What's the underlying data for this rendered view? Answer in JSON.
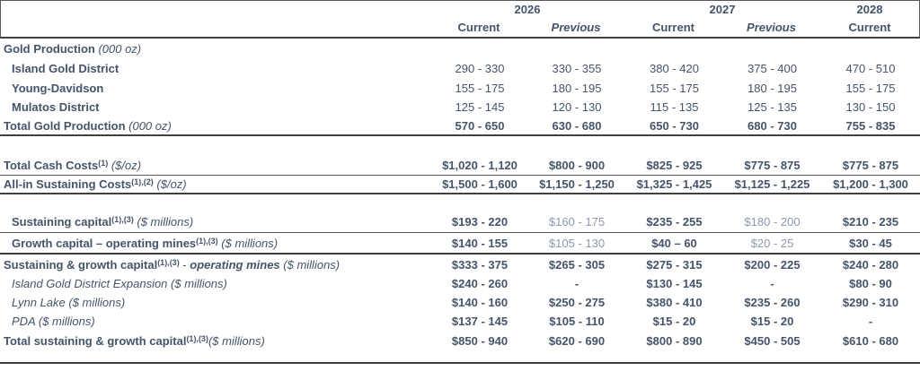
{
  "colors": {
    "background": "#FFFFFF",
    "text": "#44546A",
    "value_muted": "#8C9AAB",
    "rule_thin": "#595959",
    "rule_thick": "#404040"
  },
  "header": {
    "years": [
      {
        "label": "2026",
        "cols": 2
      },
      {
        "label": "2027",
        "cols": 2
      },
      {
        "label": "2028",
        "cols": 1
      }
    ],
    "subheaders": [
      {
        "label": "Current",
        "italic": false
      },
      {
        "label": "Previous",
        "italic": true
      },
      {
        "label": "Current",
        "italic": false
      },
      {
        "label": "Previous",
        "italic": true
      },
      {
        "label": "Current",
        "italic": false
      }
    ]
  },
  "table": {
    "rows": [
      {
        "name": "gold-production-header",
        "indent": false,
        "rule": "none",
        "label_parts": [
          {
            "t": "Gold Production",
            "s": "b"
          },
          {
            "t": " (000 oz)",
            "s": "i"
          }
        ],
        "values": []
      },
      {
        "name": "island-gold-district",
        "indent": true,
        "rule": "none",
        "label_parts": [
          {
            "t": "Island Gold District",
            "s": "b"
          }
        ],
        "values": [
          {
            "t": "290 - 330",
            "s": "reg"
          },
          {
            "t": "330 - 355",
            "s": "reg"
          },
          {
            "t": "380 - 420",
            "s": "reg"
          },
          {
            "t": "375 - 400",
            "s": "reg"
          },
          {
            "t": "470 - 510",
            "s": "reg"
          }
        ]
      },
      {
        "name": "young-davidson",
        "indent": true,
        "rule": "none",
        "label_parts": [
          {
            "t": "Young-Davidson",
            "s": "b"
          }
        ],
        "values": [
          {
            "t": "155 - 175",
            "s": "reg"
          },
          {
            "t": "180 - 195",
            "s": "reg"
          },
          {
            "t": "155 - 175",
            "s": "reg"
          },
          {
            "t": "180 - 195",
            "s": "reg"
          },
          {
            "t": "155 - 175",
            "s": "reg"
          }
        ]
      },
      {
        "name": "mulatos-district",
        "indent": true,
        "rule": "none",
        "label_parts": [
          {
            "t": "Mulatos District",
            "s": "b"
          }
        ],
        "values": [
          {
            "t": "125 - 145",
            "s": "reg"
          },
          {
            "t": "120 - 130",
            "s": "reg"
          },
          {
            "t": "115 - 135",
            "s": "reg"
          },
          {
            "t": "125 - 135",
            "s": "reg"
          },
          {
            "t": "130 - 150",
            "s": "reg"
          }
        ]
      },
      {
        "name": "total-gold-production",
        "indent": false,
        "rule": "thick",
        "label_parts": [
          {
            "t": "Total Gold Production",
            "s": "b"
          },
          {
            "t": " (000 oz)",
            "s": "i"
          }
        ],
        "values": [
          {
            "t": "570 - 650",
            "s": "bold"
          },
          {
            "t": "630 - 680",
            "s": "bold"
          },
          {
            "t": "650 - 730",
            "s": "bold"
          },
          {
            "t": "680 - 730",
            "s": "bold"
          },
          {
            "t": "755 - 835",
            "s": "bold"
          }
        ]
      },
      {
        "name": "spacer-1",
        "spacer": true,
        "rule": "none",
        "label_parts": [],
        "values": []
      },
      {
        "name": "total-cash-costs",
        "indent": false,
        "rule": "thin",
        "label_parts": [
          {
            "t": "Total Cash Costs",
            "s": "b"
          },
          {
            "t": "(1)",
            "s": "sup"
          },
          {
            "t": " ($/oz)",
            "s": "i"
          }
        ],
        "values": [
          {
            "t": "$1,020 - 1,120",
            "s": "bold"
          },
          {
            "t": "$800 - 900",
            "s": "bold"
          },
          {
            "t": "$825 - 925",
            "s": "bold"
          },
          {
            "t": "$775 - 875",
            "s": "bold"
          },
          {
            "t": "$775 - 875",
            "s": "bold"
          }
        ]
      },
      {
        "name": "all-in-sustaining-costs",
        "indent": false,
        "rule": "thick",
        "label_parts": [
          {
            "t": "All-in Sustaining Costs",
            "s": "b"
          },
          {
            "t": "(1),(2)",
            "s": "sup"
          },
          {
            "t": " ($/oz)",
            "s": "i"
          }
        ],
        "values": [
          {
            "t": "$1,500 - 1,600",
            "s": "bold"
          },
          {
            "t": "$1,150 - 1,250",
            "s": "bold"
          },
          {
            "t": "$1,325 - 1,425",
            "s": "bold"
          },
          {
            "t": "$1,125 - 1,225",
            "s": "bold"
          },
          {
            "t": "$1,200 - 1,300",
            "s": "bold"
          }
        ]
      },
      {
        "name": "spacer-2",
        "spacer": true,
        "rule": "none",
        "label_parts": [],
        "values": []
      },
      {
        "name": "sustaining-capital",
        "indent": true,
        "rule": "thin",
        "label_parts": [
          {
            "t": "Sustaining capital",
            "s": "b"
          },
          {
            "t": "(1),(3)",
            "s": "sup"
          },
          {
            "t": " ($ millions)",
            "s": "i"
          }
        ],
        "values": [
          {
            "t": "$193 - 220",
            "s": "bold"
          },
          {
            "t": "$160 - 175",
            "s": "gray"
          },
          {
            "t": "$235 - 255",
            "s": "bold"
          },
          {
            "t": "$180 - 200",
            "s": "gray"
          },
          {
            "t": "$210 - 235",
            "s": "bold"
          }
        ]
      },
      {
        "name": "growth-capital-operating-mines",
        "indent": true,
        "rule": "thick",
        "label_parts": [
          {
            "t": "Growth capital – operating mines",
            "s": "b"
          },
          {
            "t": "(1),(3)",
            "s": "sup"
          },
          {
            "t": " ($ millions)",
            "s": "i"
          }
        ],
        "values": [
          {
            "t": "$140 - 155",
            "s": "bold"
          },
          {
            "t": "$105 - 130",
            "s": "gray"
          },
          {
            "t": "$40 – 60",
            "s": "bold"
          },
          {
            "t": "$20 - 25",
            "s": "gray"
          },
          {
            "t": "$30 - 45",
            "s": "bold"
          }
        ]
      },
      {
        "name": "sustaining-growth-capital-operating-mines",
        "indent": false,
        "rule": "none",
        "label_parts": [
          {
            "t": "Sustaining & growth capital",
            "s": "b"
          },
          {
            "t": "(1),(3)",
            "s": "sup"
          },
          {
            "t": " - ",
            "s": "r"
          },
          {
            "t": "operating mines",
            "s": "bi"
          },
          {
            "t": " ($ millions)",
            "s": "i"
          }
        ],
        "values": [
          {
            "t": "$333 - 375",
            "s": "bold"
          },
          {
            "t": "$265 - 305",
            "s": "bold"
          },
          {
            "t": "$275 - 315",
            "s": "bold"
          },
          {
            "t": "$200 - 225",
            "s": "bold"
          },
          {
            "t": "$240 - 280",
            "s": "bold"
          }
        ]
      },
      {
        "name": "island-gold-district-expansion",
        "indent": true,
        "rule": "none",
        "label_parts": [
          {
            "t": "Island Gold District Expansion ($ millions)",
            "s": "i"
          }
        ],
        "values": [
          {
            "t": "$240 - 260",
            "s": "bold"
          },
          {
            "t": "-",
            "s": "bold"
          },
          {
            "t": "$130 - 145",
            "s": "bold"
          },
          {
            "t": "-",
            "s": "bold"
          },
          {
            "t": "$80 - 90",
            "s": "bold"
          }
        ]
      },
      {
        "name": "lynn-lake",
        "indent": true,
        "rule": "none",
        "label_parts": [
          {
            "t": "Lynn Lake ($ millions)",
            "s": "i"
          }
        ],
        "values": [
          {
            "t": "$140 - 160",
            "s": "bold"
          },
          {
            "t": "$250 - 275",
            "s": "bold"
          },
          {
            "t": "$380 - 410",
            "s": "bold"
          },
          {
            "t": "$235 - 260",
            "s": "bold"
          },
          {
            "t": "$290 - 310",
            "s": "bold"
          }
        ]
      },
      {
        "name": "pda",
        "indent": true,
        "rule": "none",
        "label_parts": [
          {
            "t": "PDA ($ millions)",
            "s": "i"
          }
        ],
        "values": [
          {
            "t": "$137 - 145",
            "s": "bold"
          },
          {
            "t": "$105 - 110",
            "s": "bold"
          },
          {
            "t": "$15 - 20",
            "s": "bold"
          },
          {
            "t": "$15 - 20",
            "s": "bold"
          },
          {
            "t": "-",
            "s": "bold"
          }
        ]
      },
      {
        "name": "total-sustaining-growth-capital",
        "indent": false,
        "rule": "none",
        "label_parts": [
          {
            "t": "Total sustaining & growth capital",
            "s": "b"
          },
          {
            "t": "(1),(3)",
            "s": "sup"
          },
          {
            "t": "($ millions)",
            "s": "i"
          }
        ],
        "values": [
          {
            "t": "$850 - 940",
            "s": "bold"
          },
          {
            "t": "$620 - 690",
            "s": "bold"
          },
          {
            "t": "$800 - 890",
            "s": "bold"
          },
          {
            "t": "$450 - 505",
            "s": "bold"
          },
          {
            "t": "$610 - 680",
            "s": "bold"
          }
        ]
      },
      {
        "name": "spacer-3",
        "spacer": true,
        "rule": "thick",
        "label_parts": [],
        "values": []
      }
    ]
  }
}
